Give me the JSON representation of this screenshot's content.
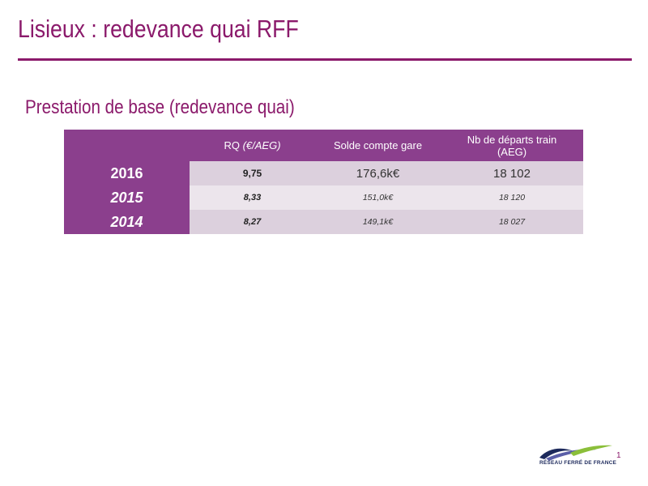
{
  "slide": {
    "title": "Lisieux : redevance quai RFF",
    "subtitle": "Prestation de base (redevance quai)",
    "page_number": "1"
  },
  "table": {
    "headers": {
      "year": "",
      "rq_main": "RQ",
      "rq_unit": "(€/AEG)",
      "solde": "Solde compte gare",
      "departs_main": "Nb de départs train",
      "departs_unit": "(AEG)"
    },
    "rows": [
      {
        "year": "2016",
        "rq": "9,75",
        "solde": "176,6k€",
        "departs": "18 102"
      },
      {
        "year": "2015",
        "rq": "8,33",
        "solde": "151,0k€",
        "departs": "18 120"
      },
      {
        "year": "2014",
        "rq": "8,27",
        "solde": "149,1k€",
        "departs": "18 027"
      }
    ]
  },
  "logo": {
    "text": "RÉSEAU FERRÉ DE FRANCE",
    "colors": [
      "#1d2a5c",
      "#5b5fa8",
      "#8bbf3a"
    ]
  },
  "colors": {
    "title": "#8b1a6b",
    "table_header": "#8b3f8d",
    "row_dark": "#dcd0dd",
    "row_light": "#ece5ec"
  }
}
